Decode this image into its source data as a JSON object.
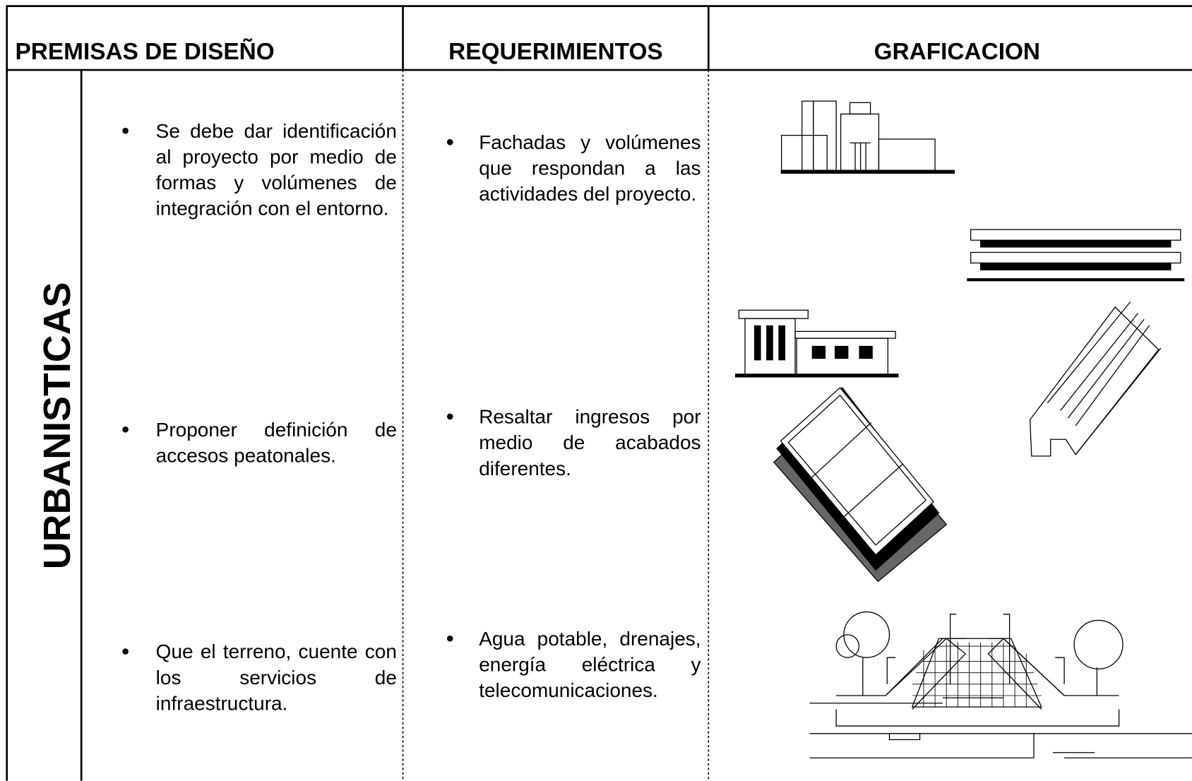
{
  "header": {
    "columns": [
      "PREMISAS DE DISEÑO",
      "REQUERIMIENTOS",
      "GRAFICACION"
    ]
  },
  "section": {
    "category": "URBANISTICAS",
    "premisas": [
      "Se debe dar identificación al proyecto por medio de formas y volúmenes de integración con el entorno.",
      "Proponer definición de accesos peatonales.",
      "Que el terreno, cuente con los servicios de infraestructura."
    ],
    "requerimientos": [
      "Fachadas y volúmenes que respondan a las actividades del proyecto.",
      "Resaltar ingresos por medio de acabados diferentes.",
      "Agua potable, drenajes, energía eléctrica y telecomunicaciones."
    ]
  }
}
